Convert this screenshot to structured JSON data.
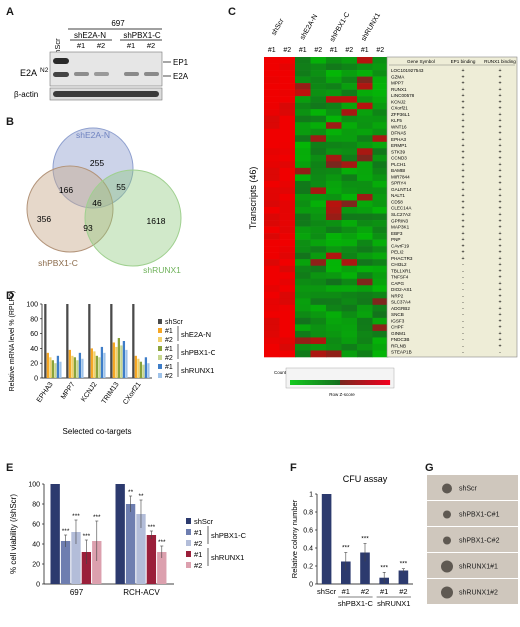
{
  "panels": {
    "A": {
      "label": "A",
      "cell_line": "697",
      "group_labels": [
        "shE2A-N",
        "shPBX1-C"
      ],
      "lanes": [
        "shScr",
        "#1",
        "#2",
        "#1",
        "#2"
      ],
      "row_label_main": "E2A",
      "row_label_sup": "N2",
      "band_labels": [
        "EP1",
        "E2A"
      ],
      "loading_control": "β-actin"
    },
    "B": {
      "label": "B",
      "sets": [
        {
          "name": "shE2A-N",
          "color": "#6e82c0"
        },
        {
          "name": "shPBX1-C",
          "color": "#8a6a4a"
        },
        {
          "name": "shRUNX1",
          "color": "#6fb25a"
        }
      ],
      "counts": {
        "a_only": "255",
        "b_only": "356",
        "c_only": "1618",
        "ab": "166",
        "ac": "55",
        "bc": "93",
        "abc": "46"
      }
    },
    "C": {
      "label": "C",
      "groups": [
        "shScr",
        "shE2A-N",
        "shPBX1-C",
        "shRUNX1"
      ],
      "col_labels": [
        "#1",
        "#2",
        "#1",
        "#2",
        "#1",
        "#2",
        "#1",
        "#2"
      ],
      "y_label": "Transcripts (46)",
      "table_headers": [
        "Gene Symbol",
        "EP1 binding",
        "RUNX1 binding"
      ],
      "genes": [
        "LOC101927543",
        "GZMA",
        "MPP7",
        "RUNX1",
        "LINC00578",
        "KCNJ2",
        "CXorf21",
        "ZFP36L1",
        "KLF5",
        "WNT16",
        "DFNA5",
        "EPHA3",
        "ERMP1",
        "STK39",
        "CCND3",
        "PLCH1",
        "BAMBI",
        "MIR7844",
        "SPRY4",
        "GALNT14",
        "NALT1",
        "CD58",
        "CLEC14A",
        "SLC27A2",
        "GPRIN3",
        "MAP3K1",
        "EBF3",
        "PNP",
        "CAvrF19",
        "PELI2",
        "PHACTR3",
        "CHI3L2",
        "TBL1XR1",
        "TNFSF4",
        "CAPG",
        "DIO2-AS1",
        "NRP2",
        "SLC37A4",
        "ADGRB2",
        "SNCB",
        "IGSF3",
        "CHPF",
        "GINM1",
        "FNDC3B",
        "RFLNB",
        "STEAP1B"
      ],
      "ep1_binding": [
        "+",
        "+",
        "+",
        "+",
        "+",
        "+",
        "+",
        "+",
        "+",
        "+",
        "+",
        "+",
        "+",
        "+",
        "+",
        "+",
        "+",
        "+",
        "+",
        "+",
        "+",
        "+",
        "+",
        "+",
        "+",
        "+",
        "+",
        "+",
        "+",
        "+",
        "+",
        "-",
        "-",
        "-",
        "-",
        "-",
        "-",
        "-",
        "-",
        "-",
        "-",
        "-",
        "-",
        "-",
        "-",
        "-"
      ],
      "runx1_binding": [
        "+",
        "+",
        "+",
        "+",
        "+",
        "+",
        "+",
        "+",
        "+",
        "+",
        "+",
        "+",
        "+",
        "+",
        "+",
        "+",
        "+",
        "+",
        "+",
        "+",
        "+",
        "+",
        "+",
        "+",
        "+",
        "+",
        "+",
        "+",
        "+",
        "+",
        "+",
        "+",
        "+",
        "+",
        "+",
        "+",
        "+",
        "+",
        "+",
        "+",
        "+",
        "+",
        "+",
        "+",
        "+",
        "-"
      ],
      "color_key_title": "Color Key and Histogram",
      "color_key_count": "Count",
      "color_key_xlabel": "Row Z-score"
    },
    "D": {
      "label": "D"
    },
    "E": {
      "label": "E"
    },
    "F": {
      "label": "F"
    },
    "G": {
      "label": "G",
      "labels": [
        "shScr",
        "shPBX1-C#1",
        "shPBX1-C#2",
        "shRUNX1#1",
        "shRUNX1#2"
      ]
    }
  },
  "chart_data": [
    {
      "id": "D",
      "type": "bar",
      "title": "",
      "xlabel": "Selected co-targets",
      "ylabel": "Relative mRNA level % (RPLP0)",
      "categories": [
        "EPHA3",
        "MPP7",
        "KCNJ2",
        "TRIM13",
        "CXorf21"
      ],
      "ylim": [
        0,
        100
      ],
      "yticks": [
        0,
        20,
        40,
        60,
        80,
        100
      ],
      "series": [
        {
          "name": "shScr",
          "color": "#4a4a4a",
          "values": [
            100,
            100,
            100,
            100,
            100
          ]
        },
        {
          "name": "#1",
          "color": "#f6a623",
          "values": [
            34,
            38,
            40,
            48,
            30
          ]
        },
        {
          "name": "#2",
          "color": "#f2d16b",
          "values": [
            28,
            30,
            36,
            42,
            26
          ]
        },
        {
          "name": "#1",
          "color": "#8aa23a",
          "values": [
            24,
            28,
            30,
            54,
            22
          ]
        },
        {
          "name": "#2",
          "color": "#c7d78f",
          "values": [
            20,
            24,
            28,
            44,
            18
          ]
        },
        {
          "name": "#1",
          "color": "#3e7dc8",
          "values": [
            30,
            34,
            42,
            50,
            28
          ]
        },
        {
          "name": "#2",
          "color": "#9fc3ea",
          "values": [
            22,
            26,
            34,
            38,
            20
          ]
        }
      ],
      "legend": {
        "items": [
          "shScr",
          "#1",
          "#2",
          "#1",
          "#2",
          "#1",
          "#2"
        ],
        "groups": [
          "shE2A-N",
          "shPBX1-C",
          "shRUNX1"
        ]
      }
    },
    {
      "id": "E",
      "type": "bar",
      "title": "",
      "xlabel": "",
      "ylabel": "% cell viability (/shScr)",
      "categories": [
        "697",
        "RCH-ACV"
      ],
      "ylim": [
        0,
        100
      ],
      "yticks": [
        0,
        20,
        40,
        60,
        80,
        100
      ],
      "series": [
        {
          "name": "shScr",
          "color": "#2c3a6e",
          "values": [
            100,
            100
          ],
          "err": [
            0,
            0
          ],
          "sig": [
            "",
            ""
          ]
        },
        {
          "name": "#1",
          "color": "#6e7eb0",
          "values": [
            43,
            80
          ],
          "err": [
            6,
            8
          ],
          "sig": [
            "***",
            "**"
          ]
        },
        {
          "name": "#2",
          "color": "#b3bdd9",
          "values": [
            52,
            70
          ],
          "err": [
            12,
            14
          ],
          "sig": [
            "***",
            "**"
          ]
        },
        {
          "name": "#1",
          "color": "#9a1f3a",
          "values": [
            32,
            49
          ],
          "err": [
            12,
            4
          ],
          "sig": [
            "***",
            "***"
          ]
        },
        {
          "name": "#2",
          "color": "#dca0ae",
          "values": [
            43,
            32
          ],
          "err": [
            20,
            6
          ],
          "sig": [
            "***",
            "***"
          ]
        }
      ],
      "legend": {
        "items": [
          "shScr",
          "#1",
          "#2",
          "#1",
          "#2"
        ],
        "groups": [
          "shPBX1-C",
          "shRUNX1"
        ]
      }
    },
    {
      "id": "F",
      "type": "bar",
      "title": "CFU assay",
      "xlabel": "",
      "ylabel": "Relative colony number",
      "categories": [
        "shScr",
        "#1",
        "#2",
        "#1",
        "#2"
      ],
      "group_labels": [
        "shPBX1-C",
        "shRUNX1"
      ],
      "ylim": [
        0,
        1
      ],
      "yticks": [
        0,
        0.2,
        0.4,
        0.6,
        0.8,
        1
      ],
      "color": "#2c3a6e",
      "values": [
        1.0,
        0.25,
        0.35,
        0.07,
        0.15
      ],
      "err": [
        0,
        0.1,
        0.1,
        0.06,
        0.02
      ],
      "sig": [
        "",
        "***",
        "***",
        "***",
        "***"
      ]
    }
  ]
}
